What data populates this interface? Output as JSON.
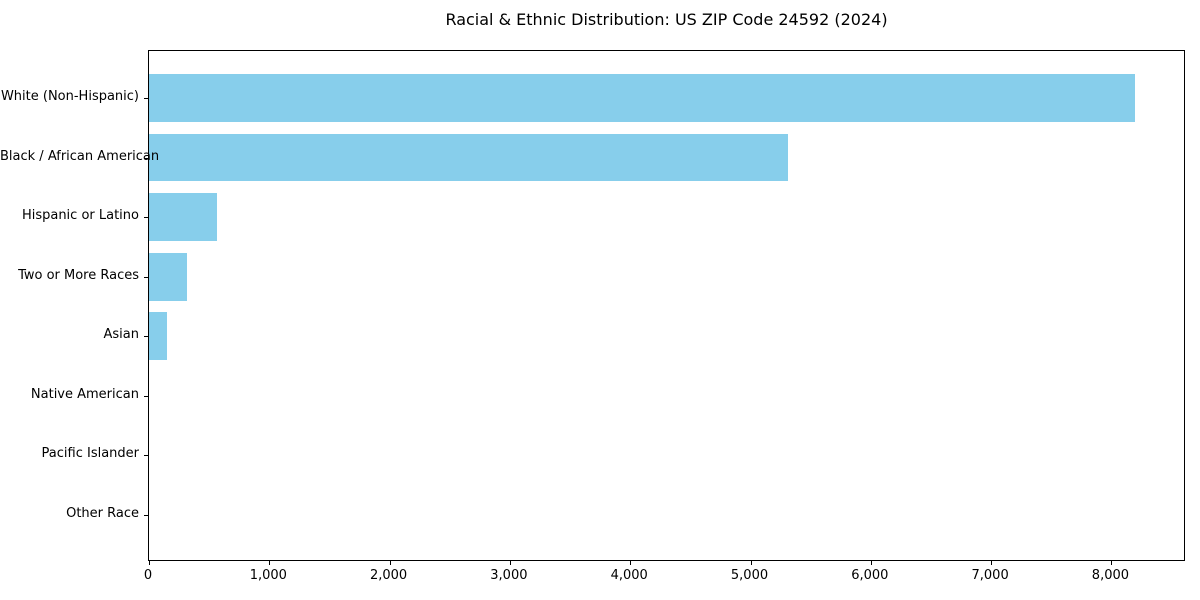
{
  "page": {
    "background": "#ffffff",
    "text_color": "#000000"
  },
  "chart_data": {
    "type": "bar",
    "orientation": "horizontal",
    "title": "Racial & Ethnic Distribution: US ZIP Code 24592 (2024)",
    "categories": [
      "White (Non-Hispanic)",
      "Black / African American",
      "Hispanic or Latino",
      "Two or More Races",
      "Asian",
      "Native American",
      "Pacific Islander",
      "Other Race"
    ],
    "values": [
      8210,
      5320,
      570,
      320,
      150,
      0,
      0,
      0
    ],
    "bar_color": "#87CEEB",
    "xlabel": "",
    "ylabel": "",
    "xlim": [
      0,
      8620
    ],
    "xticks": [
      0,
      1000,
      2000,
      3000,
      4000,
      5000,
      6000,
      7000,
      8000
    ],
    "xtick_labels": [
      "0",
      "1,000",
      "2,000",
      "3,000",
      "4,000",
      "5,000",
      "6,000",
      "7,000",
      "8,000"
    ],
    "grid": false,
    "legend": "none",
    "bar_height_fraction": 0.8,
    "axis_margin_fraction": 0.05
  }
}
